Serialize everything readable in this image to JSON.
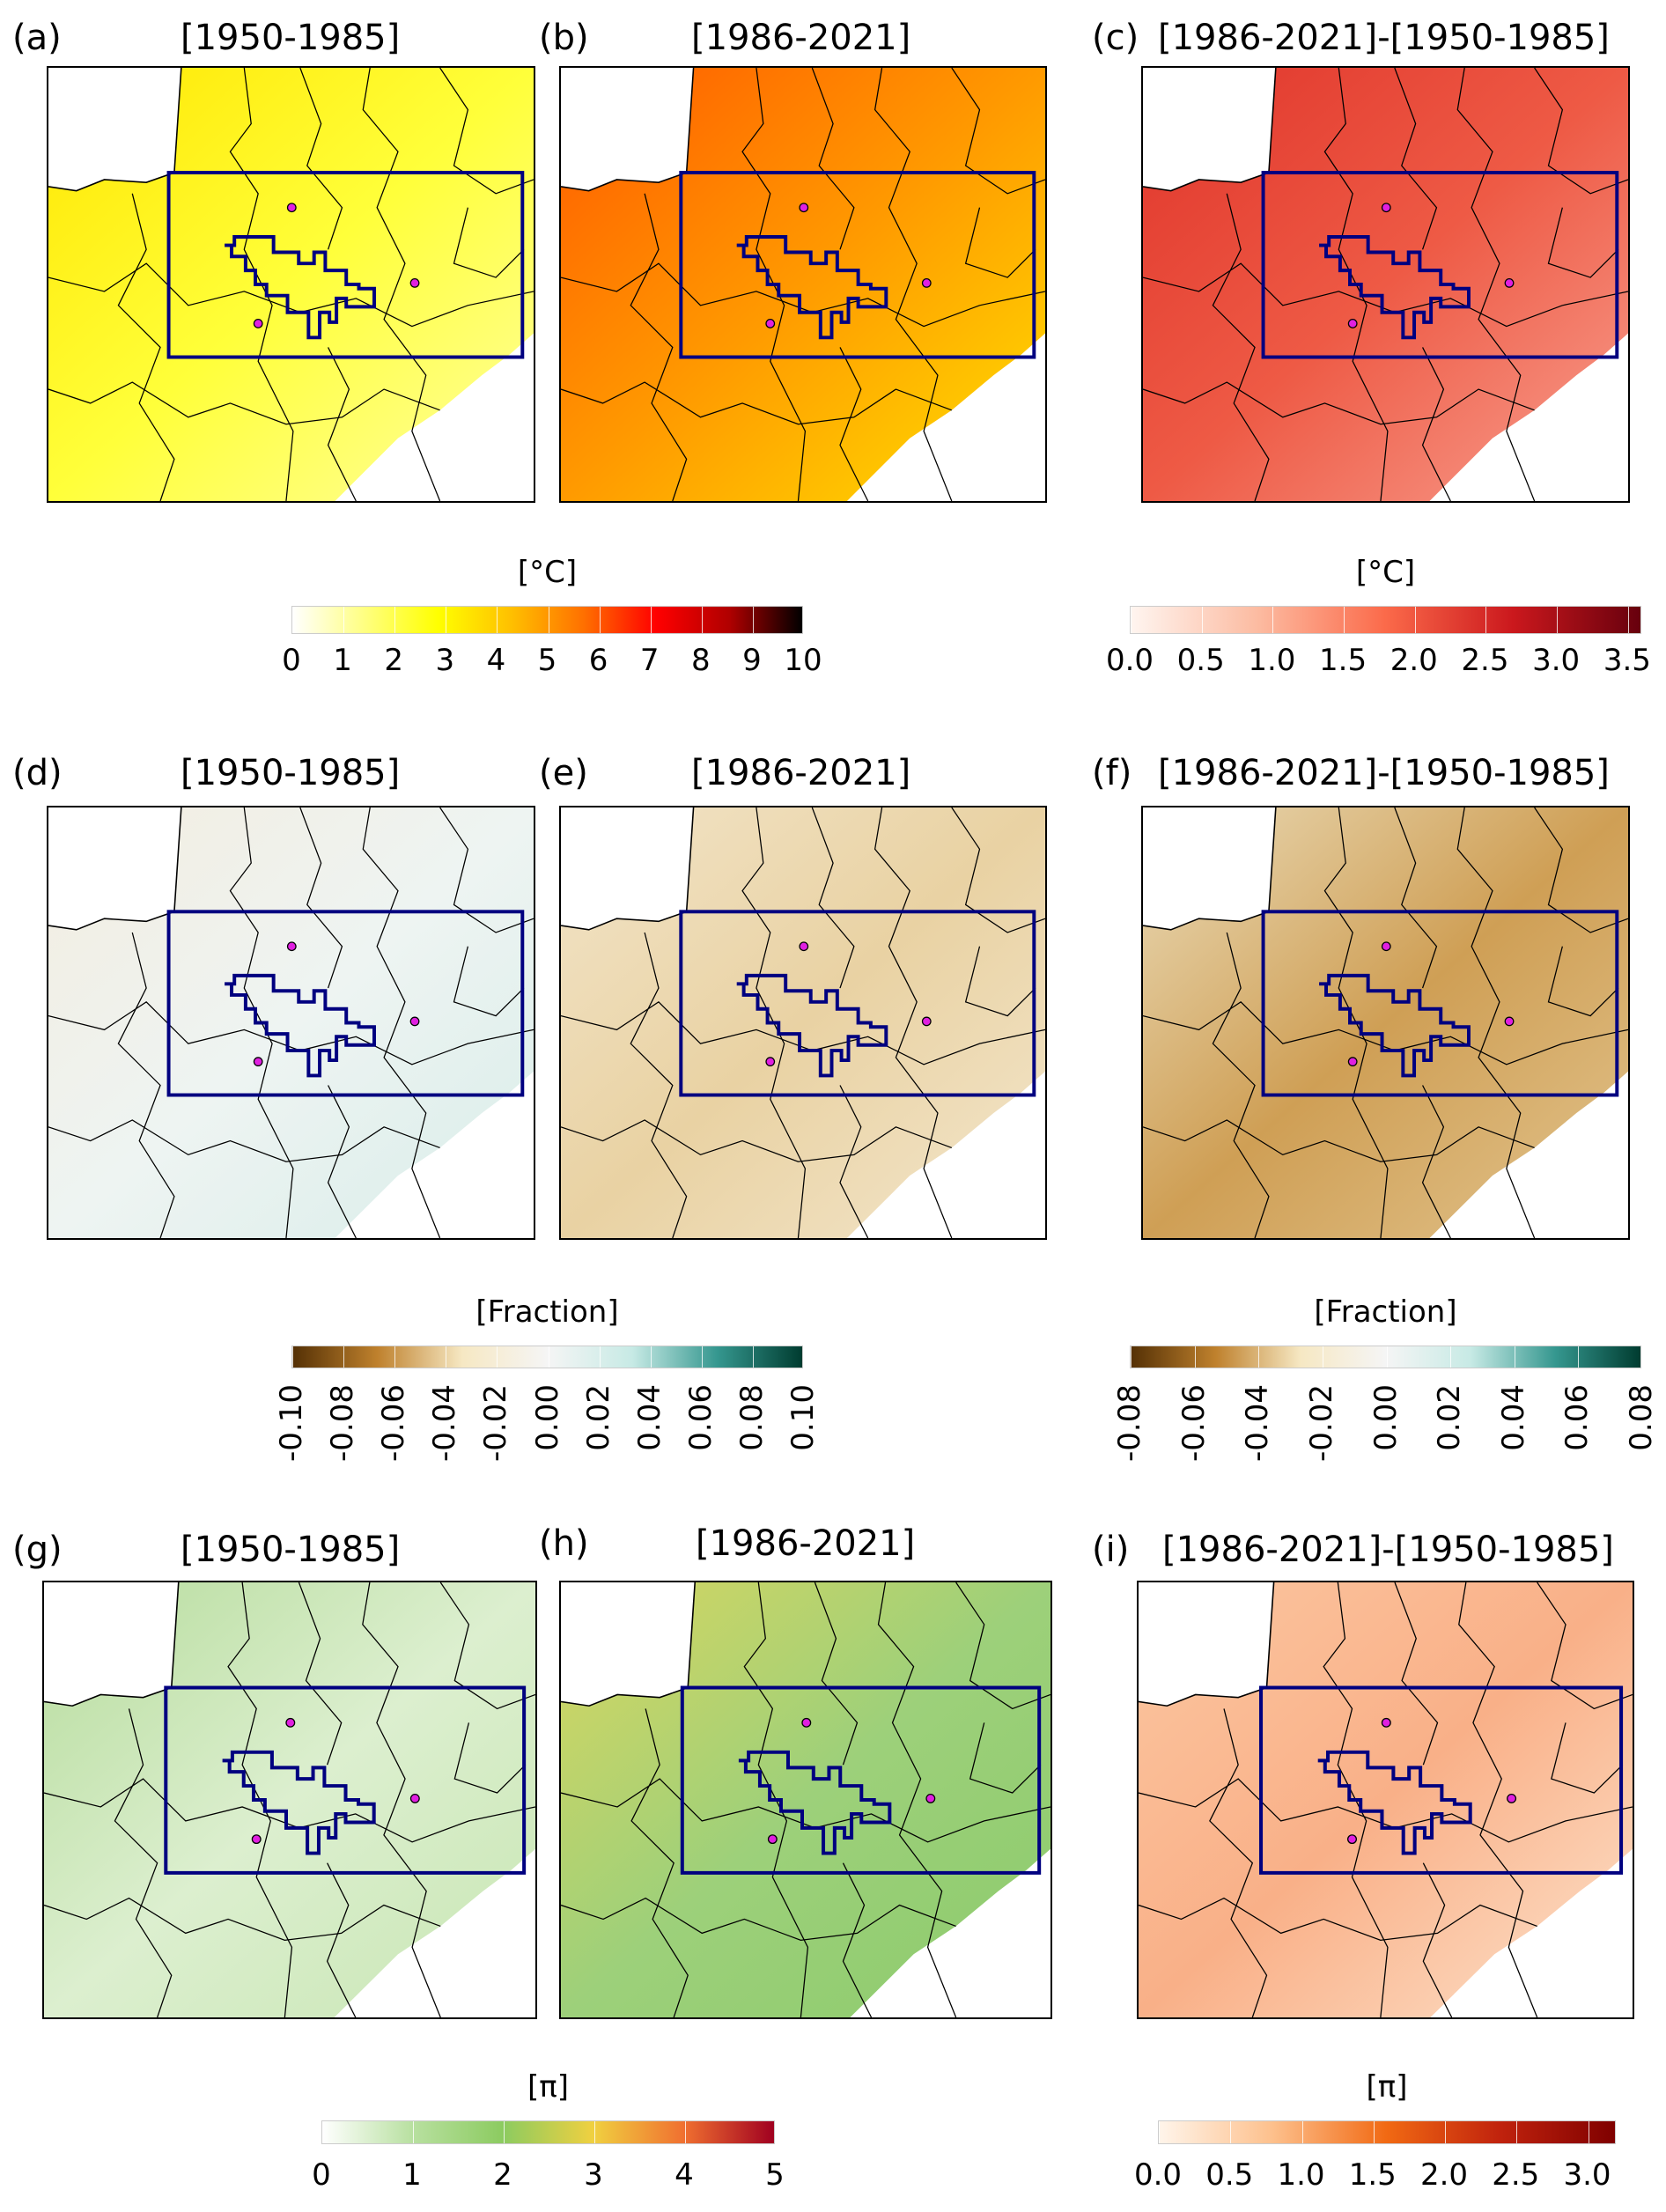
{
  "chart_data": [
    {
      "type": "heatmap",
      "panel": "(a)",
      "title": "[1950-1985]",
      "colorbar": "cb1",
      "colors": [
        "#ffe600",
        "#ffff3a",
        "#ffffa0"
      ]
    },
    {
      "type": "heatmap",
      "panel": "(b)",
      "title": "[1986-2021]",
      "colorbar": "cb1",
      "colors": [
        "#ff5a00",
        "#ff9a00",
        "#ffe000"
      ]
    },
    {
      "type": "heatmap",
      "panel": "(c)",
      "title": "[1986-2021]-[1950-1985]",
      "colorbar": "cb2",
      "colors": [
        "#e0352b",
        "#ee5a45",
        "#f8a090"
      ]
    },
    {
      "type": "heatmap",
      "panel": "(d)",
      "title": "[1950-1985]",
      "colorbar": "cb3",
      "colors": [
        "#f3ede0",
        "#eef4f2",
        "#d8ede9"
      ]
    },
    {
      "type": "heatmap",
      "panel": "(e)",
      "title": "[1986-2021]",
      "colorbar": "cb3",
      "colors": [
        "#f2e4c8",
        "#e9d2a3",
        "#f3e6cc"
      ]
    },
    {
      "type": "heatmap",
      "panel": "(f)",
      "title": "[1986-2021]-[1950-1985]",
      "colorbar": "cb4",
      "colors": [
        "#eadbb8",
        "#cf9f55",
        "#e2c48e"
      ]
    },
    {
      "type": "heatmap",
      "panel": "(g)",
      "title": "[1950-1985]",
      "colorbar": "cb5",
      "colors": [
        "#b6dc9c",
        "#dcefcf",
        "#c8e6b3"
      ]
    },
    {
      "type": "heatmap",
      "panel": "(h)",
      "title": "[1986-2021]",
      "colorbar": "cb5",
      "colors": [
        "#d8d660",
        "#9dd07a",
        "#8ccb6c"
      ]
    },
    {
      "type": "heatmap",
      "panel": "(i)",
      "title": "[1986-2021]-[1950-1985]",
      "colorbar": "cb6",
      "colors": [
        "#fbc6a0",
        "#f9b088",
        "#fde3cc"
      ]
    }
  ],
  "colorbars": {
    "cb1": {
      "label": "[°C]",
      "ticks": [
        "0",
        "1",
        "2",
        "3",
        "4",
        "5",
        "6",
        "7",
        "8",
        "9",
        "10"
      ],
      "range": [
        0,
        10
      ],
      "stops": [
        "#ffffff",
        "#ffff80",
        "#ffff00",
        "#ffc000",
        "#ff7000",
        "#ff0000",
        "#b00000",
        "#000000"
      ]
    },
    "cb2": {
      "label": "[°C]",
      "ticks": [
        "0.0",
        "0.5",
        "1.0",
        "1.5",
        "2.0",
        "2.5",
        "3.0",
        "3.5"
      ],
      "range": [
        0,
        3.6
      ],
      "stops": [
        "#fff5f0",
        "#fcbba1",
        "#fb6a4a",
        "#cb181d",
        "#67000d"
      ]
    },
    "cb3": {
      "label": "[Fraction]",
      "ticks": [
        "-0.10",
        "-0.08",
        "-0.06",
        "-0.04",
        "-0.02",
        "0.00",
        "0.02",
        "0.04",
        "0.06",
        "0.08",
        "0.10"
      ],
      "range": [
        -0.1,
        0.1
      ],
      "stops": [
        "#543005",
        "#bf812d",
        "#f6e8c3",
        "#f5f5f5",
        "#c7eae5",
        "#35978f",
        "#003c30"
      ]
    },
    "cb4": {
      "label": "[Fraction]",
      "ticks": [
        "-0.08",
        "-0.06",
        "-0.04",
        "-0.02",
        "0.00",
        "0.02",
        "0.04",
        "0.06",
        "0.08"
      ],
      "range": [
        -0.08,
        0.08
      ],
      "stops": [
        "#543005",
        "#bf812d",
        "#f6e8c3",
        "#f5f5f5",
        "#c7eae5",
        "#35978f",
        "#003c30"
      ]
    },
    "cb5": {
      "label": "[π]",
      "ticks": [
        "0",
        "1",
        "2",
        "3",
        "4",
        "5"
      ],
      "range": [
        0,
        5
      ],
      "stops": [
        "#ffffff",
        "#b8e0a0",
        "#8ccb60",
        "#f0d040",
        "#f07030",
        "#a00020"
      ]
    },
    "cb6": {
      "label": "[π]",
      "ticks": [
        "0.0",
        "0.5",
        "1.0",
        "1.5",
        "2.0",
        "2.5",
        "3.0"
      ],
      "range": [
        0,
        3.2
      ],
      "stops": [
        "#fff5eb",
        "#fdc08c",
        "#f16913",
        "#c0220d",
        "#7f0000"
      ]
    }
  },
  "overlay_colors": {
    "box": "#000080",
    "dots": "#e020e0",
    "borders": "#000000"
  }
}
